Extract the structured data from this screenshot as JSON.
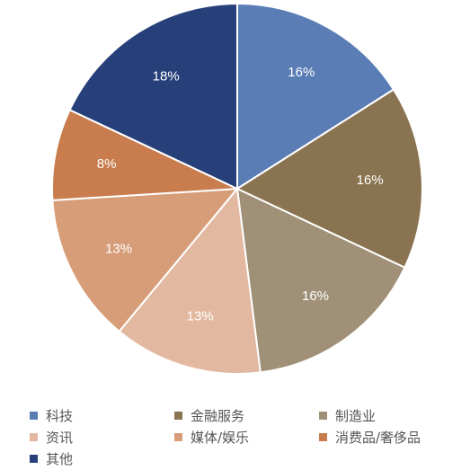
{
  "chart_data": {
    "type": "pie",
    "title": "",
    "categories": [
      "科技",
      "金融服务",
      "制造业",
      "资讯",
      "媒体/娱乐",
      "消费品/奢侈品",
      "其他"
    ],
    "values": [
      16,
      16,
      16,
      13,
      13,
      8,
      18
    ],
    "labels": [
      "16%",
      "16%",
      "16%",
      "13%",
      "13%",
      "8%",
      "18%"
    ],
    "colors": [
      "#5a7db5",
      "#8a7350",
      "#a09078",
      "#e2b9a0",
      "#d79d78",
      "#c97d4e",
      "#27407a"
    ],
    "start_angle": "12 o'clock",
    "direction": "clockwise",
    "legend_position": "bottom",
    "legend_columns": 3
  }
}
